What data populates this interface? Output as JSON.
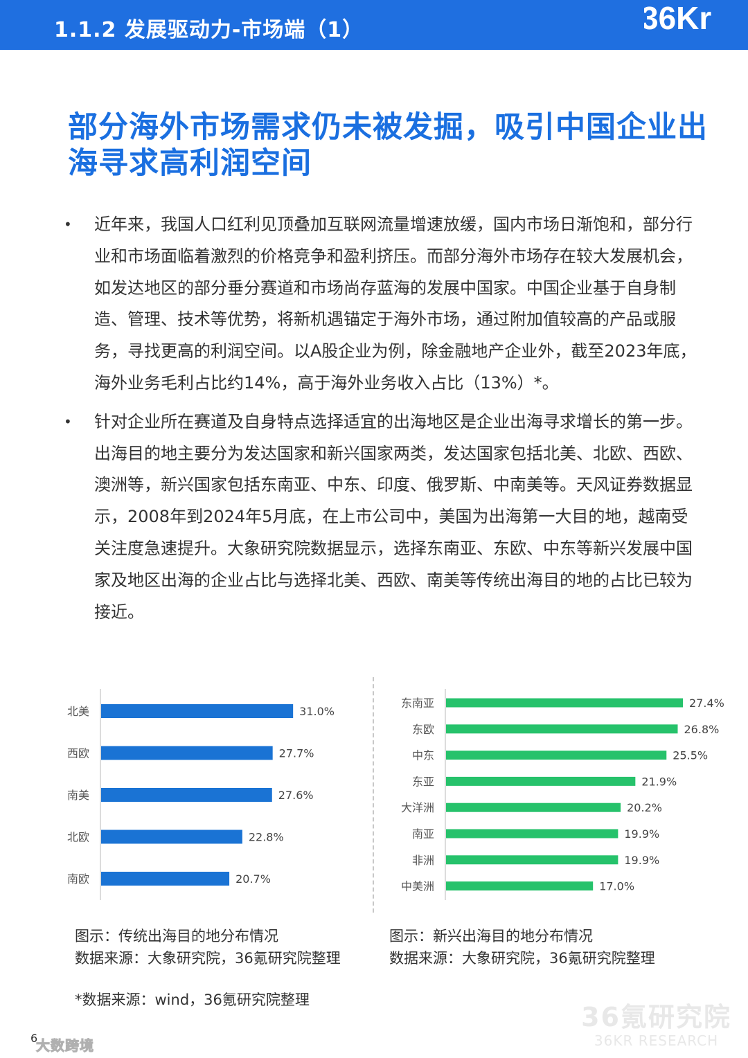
{
  "header": {
    "title": "1.1.2 发展驱动力-市场端（1）",
    "logo_text": "36Kr"
  },
  "headline": "部分海外市场需求仍未被发掘，吸引中国企业出海寻求高利润空间",
  "bullets": [
    {
      "marker": "•",
      "text": "近年来，我国人口红利见顶叠加互联网流量增速放缓，国内市场日渐饱和，部分行业和市场面临着激烈的价格竞争和盈利挤压。而部分海外市场存在较大发展机会，如发达地区的部分垂分赛道和市场尚存蓝海的发展中国家。中国企业基于自身制造、管理、技术等优势，将新机遇锚定于海外市场，通过附加值较高的产品或服务，寻找更高的利润空间。以A股企业为例，除金融地产企业外，截至2023年底，海外业务毛利占比约14%，高于海外业务收入占比（13%）*。"
    },
    {
      "marker": "•",
      "text": "针对企业所在赛道及自身特点选择适宜的出海地区是企业出海寻求增长的第一步。出海目的地主要分为发达国家和新兴国家两类，发达国家包括北美、北欧、西欧、澳洲等，新兴国家包括东南亚、中东、印度、俄罗斯、中南美等。天风证券数据显示，2008年到2024年5月底，在上市公司中，美国为出海第一大目的地，越南受关注度急速提升。大象研究院数据显示，选择东南亚、东欧、中东等新兴发展中国家及地区出海的企业占比与选择北美、西欧、南美等传统出海目的地的占比已较为接近。"
    }
  ],
  "chart_data": [
    {
      "type": "bar",
      "orientation": "horizontal",
      "color": "#1a73d4",
      "categories": [
        "北美",
        "西欧",
        "南美",
        "北欧",
        "南欧"
      ],
      "values": [
        31.0,
        27.7,
        27.6,
        22.8,
        20.7
      ],
      "data_labels": [
        "31.0%",
        "27.7%",
        "27.6%",
        "22.8%",
        "20.7%"
      ],
      "xlim": [
        0,
        34
      ]
    },
    {
      "type": "bar",
      "orientation": "horizontal",
      "color": "#26c26b",
      "categories": [
        "东南亚",
        "东欧",
        "中东",
        "东亚",
        "大洋洲",
        "南亚",
        "非洲",
        "中美洲"
      ],
      "values": [
        27.4,
        26.8,
        25.5,
        21.9,
        20.2,
        19.9,
        19.9,
        17.0
      ],
      "data_labels": [
        "27.4%",
        "26.8%",
        "25.5%",
        "21.9%",
        "20.2%",
        "19.9%",
        "19.9%",
        "17.0%"
      ],
      "xlim": [
        0,
        27.4
      ]
    }
  ],
  "captions": [
    {
      "title": "图示：传统出海目的地分布情况",
      "source": "数据来源：大象研究院，36氪研究院整理"
    },
    {
      "title": "图示：新兴出海目的地分布情况",
      "source": "数据来源：大象研究院，36氪研究院整理"
    }
  ],
  "footnote": "*数据来源：wind，36氪研究院整理",
  "watermark": {
    "cn": "36氪研究院",
    "en": "36KR RESEARCH"
  },
  "page_number": "6",
  "brand_watermark": "大数跨境"
}
